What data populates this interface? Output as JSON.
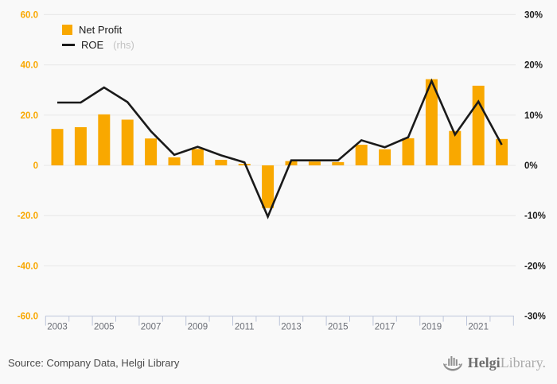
{
  "chart": {
    "legend": [
      {
        "label": "Net Profit",
        "suffix": "",
        "marker": "bar-swatch",
        "color": "#F9A800"
      },
      {
        "label": "ROE",
        "suffix": "(rhs)",
        "marker": "line-dash",
        "color": "#1a1a1a"
      }
    ]
  },
  "chart_data": {
    "type": "combo-bar-line",
    "title": "",
    "categories": [
      2003,
      2004,
      2005,
      2006,
      2007,
      2008,
      2009,
      2010,
      2011,
      2012,
      2013,
      2014,
      2015,
      2016,
      2017,
      2018,
      2019,
      2020,
      2021,
      2022
    ],
    "series": [
      {
        "name": "Net Profit",
        "type": "bar",
        "axis": "left",
        "color": "#F9A800",
        "values": [
          14.5,
          15.2,
          20.3,
          18.2,
          10.7,
          3.2,
          6.5,
          2.2,
          0.6,
          -17.0,
          1.7,
          1.5,
          1.3,
          8.2,
          6.4,
          10.8,
          34.3,
          13.7,
          31.7,
          10.5
        ]
      },
      {
        "name": "ROE",
        "type": "line",
        "axis": "right",
        "color": "#1a1a1a",
        "values": [
          12.5,
          12.5,
          15.5,
          12.6,
          6.8,
          2.1,
          3.7,
          2.0,
          0.6,
          -10.2,
          1.0,
          1.0,
          1.0,
          5.0,
          3.6,
          5.6,
          16.8,
          6.1,
          12.7,
          4.1
        ]
      }
    ],
    "left_axis": {
      "values": [
        60,
        40,
        20,
        0,
        -20,
        -40,
        -60
      ],
      "labels": [
        "60.0",
        "40.0",
        "20.0",
        "0",
        "-20.0",
        "-40.0",
        "-60.0"
      ],
      "range": [
        -60,
        60
      ],
      "color": "#F9A800"
    },
    "right_axis": {
      "values": [
        30,
        20,
        10,
        0,
        -10,
        -20,
        -30
      ],
      "labels": [
        "30%",
        "20%",
        "10%",
        "0%",
        "-10%",
        "-20%",
        "-30%"
      ],
      "range": [
        -30,
        30
      ],
      "color": "#1a1a1a",
      "scale_vs_left": 2
    },
    "x_axis": {
      "labeled_years": [
        "2003",
        "2005",
        "2007",
        "2009",
        "2011",
        "2013",
        "2015",
        "2017",
        "2019",
        "2021"
      ],
      "label_color": "#6b6e76",
      "axis_color": "#bdc5da"
    },
    "grid": true,
    "gridline_color": "#e7e7e7",
    "background": "#f9f9f9",
    "legend_position": "top-left"
  },
  "footer": {
    "source": "Source: Company Data, Helgi Library",
    "logo": {
      "name": "Helgi",
      "name2": "Library."
    }
  }
}
